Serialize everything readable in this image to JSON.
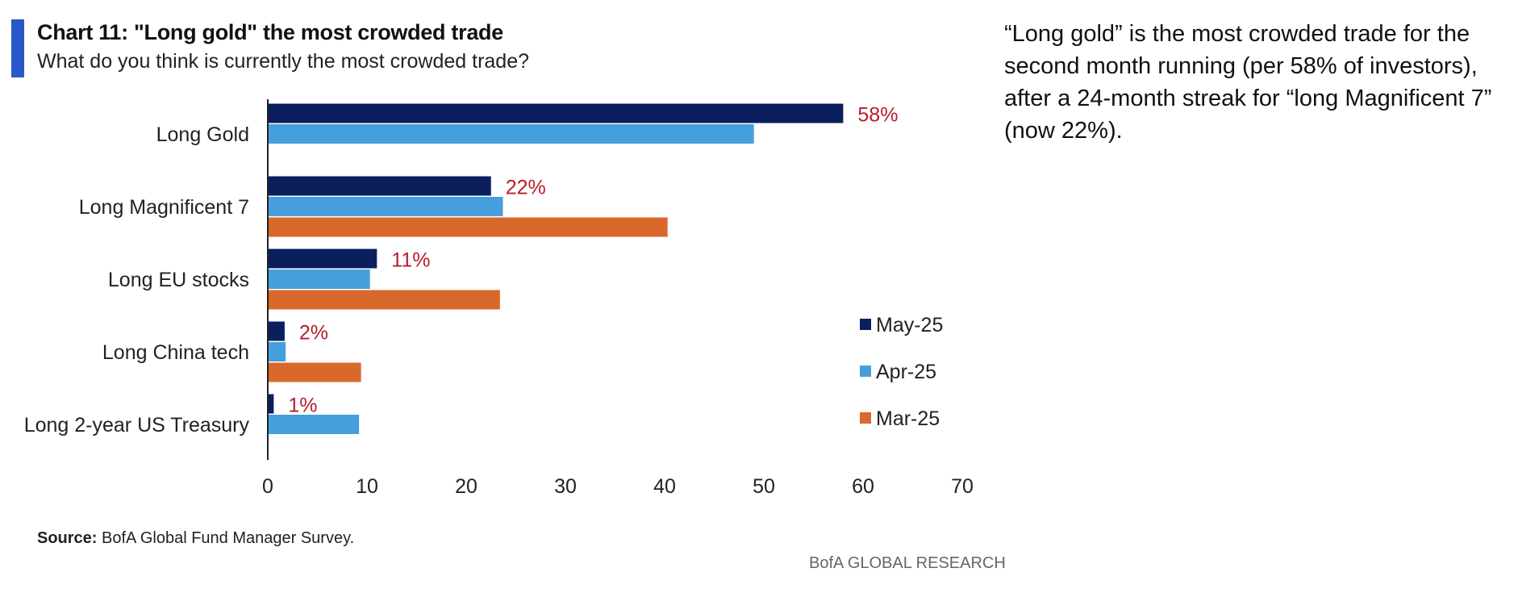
{
  "header": {
    "title": "Chart 11: \"Long gold\" the most crowded trade",
    "subtitle": "What do you think is currently the most crowded trade?"
  },
  "commentary": "“Long gold” is the most crowded trade for the second month running (per 58% of investors), after a 24-month streak for “long Magnificent 7” (now 22%).",
  "source": {
    "label": "Source:",
    "text": " BofA Global Fund Manager Survey."
  },
  "footer": "BofA GLOBAL RESEARCH",
  "chart_data": {
    "type": "bar",
    "orientation": "horizontal",
    "categories": [
      "Long Gold",
      "Long Magnificent 7",
      "Long EU stocks",
      "Long China tech",
      "Long 2-year US Treasury"
    ],
    "series": [
      {
        "name": "May-25",
        "color": "#0b1f5e",
        "values": [
          58,
          22.5,
          11,
          1.7,
          0.6
        ]
      },
      {
        "name": "Apr-25",
        "color": "#459fdc",
        "values": [
          49,
          23.7,
          10.3,
          1.8,
          9.2
        ]
      },
      {
        "name": "Mar-25",
        "color": "#d8692b",
        "values": [
          null,
          40.3,
          23.4,
          9.4,
          null
        ]
      }
    ],
    "data_labels": [
      "58%",
      "22%",
      "11%",
      "2%",
      "1%"
    ],
    "data_label_color": "#b71c2c",
    "xlim": [
      0,
      70
    ],
    "xticks": [
      0,
      10,
      20,
      30,
      40,
      50,
      60,
      70
    ],
    "grid": false,
    "legend_position": "right"
  }
}
